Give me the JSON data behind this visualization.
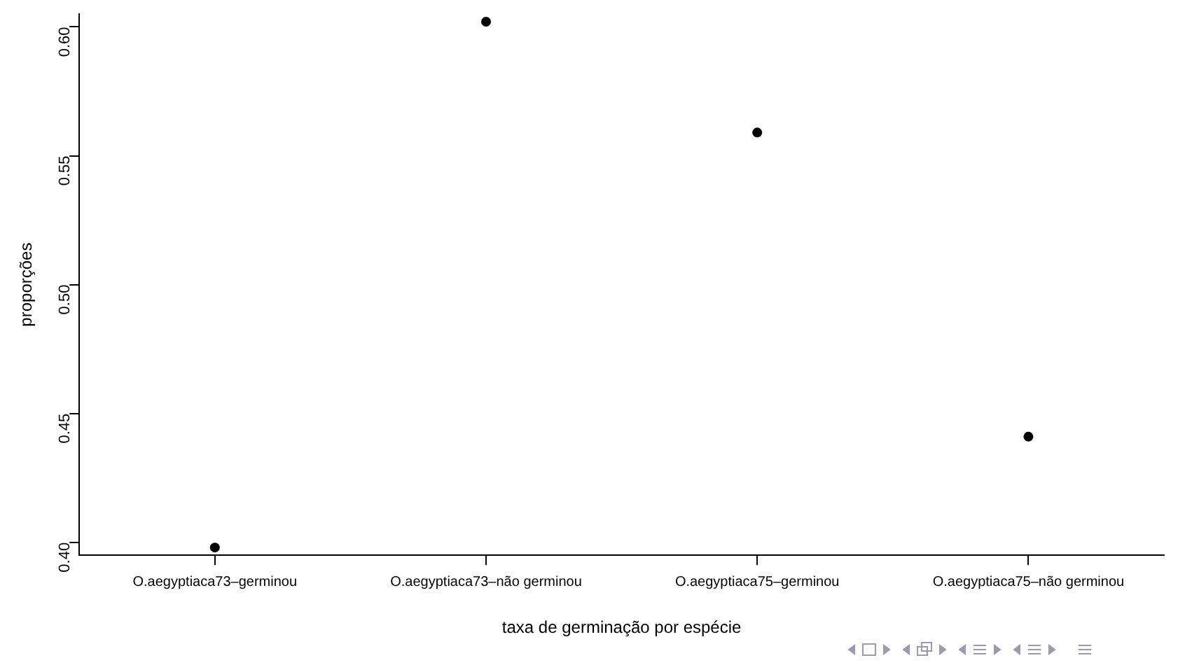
{
  "chart_data": {
    "type": "scatter",
    "xlabel": "taxa de germinação por espécie",
    "ylabel": "proporções",
    "categories": [
      "O.aegyptiaca73–germinou",
      "O.aegyptiaca73–não germinou",
      "O.aegyptiaca75–germinou",
      "O.aegyptiaca75–não germinou"
    ],
    "values": [
      0.398,
      0.602,
      0.559,
      0.441
    ],
    "color": "#000000",
    "marker": "circle",
    "ylim": [
      0.395,
      0.605
    ],
    "yticks": [
      {
        "value": 0.4,
        "label": "0.40"
      },
      {
        "value": 0.45,
        "label": "0.45"
      },
      {
        "value": 0.5,
        "label": "0.50"
      },
      {
        "value": 0.55,
        "label": "0.55"
      },
      {
        "value": 0.6,
        "label": "0.60"
      }
    ],
    "grid": false,
    "legend": false
  }
}
